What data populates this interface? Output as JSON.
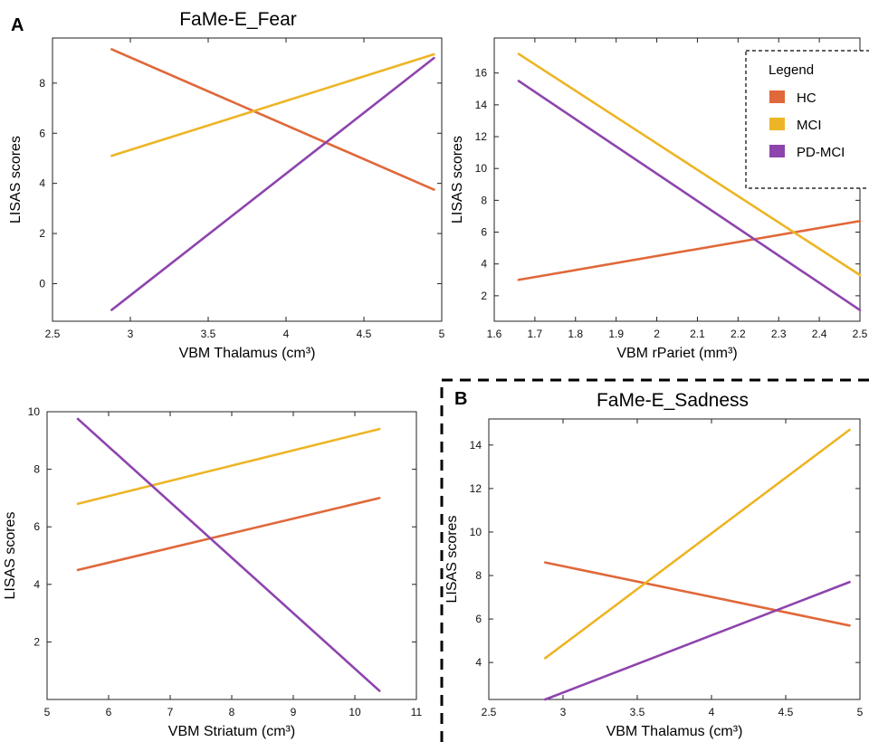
{
  "panel_labels": {
    "a": "A",
    "b": "B"
  },
  "legend": {
    "title": "Legend",
    "items": [
      {
        "label": "HC",
        "color": "#E0683A"
      },
      {
        "label": "MCI",
        "color": "#EDB526"
      },
      {
        "label": "PD-MCI",
        "color": "#8E44AD"
      }
    ]
  },
  "chart_data": [
    {
      "type": "line",
      "title": "FaMe-E_Fear",
      "xlabel": "VBM Thalamus (cm³)",
      "ylabel": "LISAS scores",
      "xlim": [
        2.5,
        5
      ],
      "ylim": [
        -1.5,
        9.8
      ],
      "xticks": [
        "2.5",
        "3",
        "3.5",
        "4",
        "4.5",
        "5"
      ],
      "yticks": [
        "0",
        "2",
        "4",
        "6",
        "8"
      ],
      "series": [
        {
          "name": "HC",
          "color": "#E0683A",
          "x": [
            2.88,
            4.95
          ],
          "y": [
            9.35,
            3.75
          ]
        },
        {
          "name": "MCI",
          "color": "#EDB526",
          "x": [
            2.88,
            4.95
          ],
          "y": [
            5.1,
            9.15
          ]
        },
        {
          "name": "PD-MCI",
          "color": "#8E44AD",
          "x": [
            2.88,
            4.95
          ],
          "y": [
            -1.05,
            9.0
          ]
        }
      ]
    },
    {
      "type": "line",
      "title": "",
      "xlabel": "VBM rPariet (mm³)",
      "ylabel": "LISAS scores",
      "xlim": [
        1.6,
        2.5
      ],
      "ylim": [
        0.4,
        18.2
      ],
      "xticks": [
        "1.6",
        "1.7",
        "1.8",
        "1.9",
        "2",
        "2.1",
        "2.2",
        "2.3",
        "2.4",
        "2.5"
      ],
      "yticks": [
        "2",
        "4",
        "6",
        "8",
        "10",
        "12",
        "14",
        "16"
      ],
      "series": [
        {
          "name": "HC",
          "color": "#E0683A",
          "x": [
            1.66,
            2.5
          ],
          "y": [
            3.0,
            6.7
          ]
        },
        {
          "name": "MCI",
          "color": "#EDB526",
          "x": [
            1.66,
            2.5
          ],
          "y": [
            17.2,
            3.3
          ]
        },
        {
          "name": "PD-MCI",
          "color": "#8E44AD",
          "x": [
            1.66,
            2.5
          ],
          "y": [
            15.5,
            1.1
          ]
        }
      ]
    },
    {
      "type": "line",
      "title": "",
      "xlabel": "VBM Striatum (cm³)",
      "ylabel": "LISAS scores",
      "xlim": [
        5,
        11
      ],
      "ylim": [
        0,
        10
      ],
      "xticks": [
        "5",
        "6",
        "7",
        "8",
        "9",
        "10",
        "11"
      ],
      "yticks": [
        "2",
        "4",
        "6",
        "8",
        "10"
      ],
      "series": [
        {
          "name": "HC",
          "color": "#E0683A",
          "x": [
            5.5,
            10.4
          ],
          "y": [
            4.5,
            7.0
          ]
        },
        {
          "name": "MCI",
          "color": "#EDB526",
          "x": [
            5.5,
            10.4
          ],
          "y": [
            6.8,
            9.4
          ]
        },
        {
          "name": "PD-MCI",
          "color": "#8E44AD",
          "x": [
            5.5,
            10.4
          ],
          "y": [
            9.75,
            0.3
          ]
        }
      ]
    },
    {
      "type": "line",
      "title": "FaMe-E_Sadness",
      "xlabel": "VBM Thalamus (cm³)",
      "ylabel": "LISAS scores",
      "xlim": [
        2.5,
        5
      ],
      "ylim": [
        2.3,
        15.2
      ],
      "xticks": [
        "2.5",
        "3",
        "3.5",
        "4",
        "4.5",
        "5"
      ],
      "yticks": [
        "4",
        "6",
        "8",
        "10",
        "12",
        "14"
      ],
      "series": [
        {
          "name": "HC",
          "color": "#E0683A",
          "x": [
            2.88,
            4.93
          ],
          "y": [
            8.6,
            5.7
          ]
        },
        {
          "name": "MCI",
          "color": "#EDB526",
          "x": [
            2.88,
            4.93
          ],
          "y": [
            4.2,
            14.7
          ]
        },
        {
          "name": "PD-MCI",
          "color": "#8E44AD",
          "x": [
            2.88,
            4.93
          ],
          "y": [
            2.3,
            7.7
          ]
        }
      ]
    }
  ]
}
